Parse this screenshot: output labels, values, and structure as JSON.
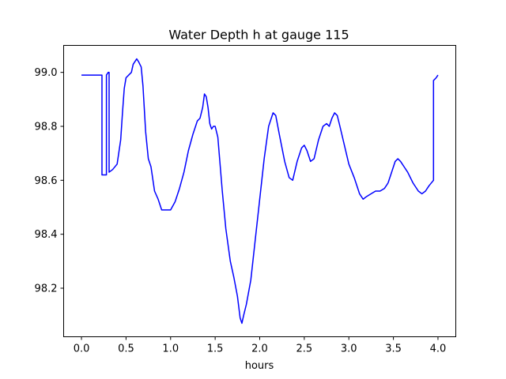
{
  "chart_data": {
    "type": "line",
    "title": "Water Depth h at gauge 115",
    "xlabel": "hours",
    "ylabel": "",
    "xlim": [
      -0.2,
      4.2
    ],
    "ylim": [
      98.02,
      99.1
    ],
    "xticks": [
      0.0,
      0.5,
      1.0,
      1.5,
      2.0,
      2.5,
      3.0,
      3.5,
      4.0
    ],
    "xtick_labels": [
      "0.0",
      "0.5",
      "1.0",
      "1.5",
      "2.0",
      "2.5",
      "3.0",
      "3.5",
      "4.0"
    ],
    "yticks": [
      98.2,
      98.4,
      98.6,
      98.8,
      99.0
    ],
    "ytick_labels": [
      "98.2",
      "98.4",
      "98.6",
      "98.8",
      "99.0"
    ],
    "grid": false,
    "series": [
      {
        "color": "#0000ff",
        "x": [
          0.0,
          0.1,
          0.22,
          0.23,
          0.23,
          0.27,
          0.28,
          0.28,
          0.3,
          0.31,
          0.31,
          0.35,
          0.4,
          0.44,
          0.46,
          0.48,
          0.5,
          0.53,
          0.56,
          0.58,
          0.62,
          0.64,
          0.67,
          0.69,
          0.72,
          0.75,
          0.78,
          0.82,
          0.86,
          0.9,
          0.95,
          1.0,
          1.05,
          1.1,
          1.15,
          1.2,
          1.25,
          1.3,
          1.33,
          1.36,
          1.38,
          1.4,
          1.42,
          1.44,
          1.46,
          1.48,
          1.5,
          1.53,
          1.55,
          1.58,
          1.62,
          1.67,
          1.71,
          1.75,
          1.78,
          1.8,
          1.82,
          1.85,
          1.9,
          1.95,
          2.0,
          2.05,
          2.1,
          2.15,
          2.18,
          2.22,
          2.28,
          2.33,
          2.37,
          2.42,
          2.47,
          2.5,
          2.53,
          2.57,
          2.61,
          2.66,
          2.71,
          2.75,
          2.78,
          2.81,
          2.84,
          2.87,
          2.9,
          2.95,
          3.0,
          3.06,
          3.12,
          3.16,
          3.2,
          3.25,
          3.3,
          3.35,
          3.4,
          3.44,
          3.48,
          3.52,
          3.55,
          3.58,
          3.62,
          3.66,
          3.72,
          3.78,
          3.82,
          3.86,
          3.9,
          3.95,
          3.95,
          3.98,
          4.0
        ],
        "y": [
          98.99,
          98.99,
          98.99,
          98.99,
          98.62,
          98.62,
          98.62,
          98.99,
          99.0,
          99.0,
          98.63,
          98.64,
          98.66,
          98.75,
          98.85,
          98.94,
          98.98,
          98.99,
          99.0,
          99.03,
          99.05,
          99.04,
          99.02,
          98.95,
          98.78,
          98.68,
          98.65,
          98.56,
          98.53,
          98.49,
          98.49,
          98.49,
          98.52,
          98.57,
          98.63,
          98.71,
          98.77,
          98.82,
          98.83,
          98.87,
          98.92,
          98.91,
          98.87,
          98.81,
          98.79,
          98.8,
          98.8,
          98.76,
          98.68,
          98.56,
          98.42,
          98.3,
          98.24,
          98.17,
          98.09,
          98.07,
          98.1,
          98.14,
          98.23,
          98.38,
          98.53,
          98.68,
          98.8,
          98.85,
          98.84,
          98.77,
          98.67,
          98.61,
          98.6,
          98.67,
          98.72,
          98.73,
          98.71,
          98.67,
          98.68,
          98.75,
          98.8,
          98.81,
          98.8,
          98.83,
          98.85,
          98.84,
          98.8,
          98.73,
          98.66,
          98.61,
          98.55,
          98.53,
          98.54,
          98.55,
          98.56,
          98.56,
          98.57,
          98.59,
          98.63,
          98.67,
          98.68,
          98.67,
          98.65,
          98.63,
          98.59,
          98.56,
          98.55,
          98.56,
          98.58,
          98.6,
          98.97,
          98.98,
          98.99
        ]
      }
    ]
  }
}
